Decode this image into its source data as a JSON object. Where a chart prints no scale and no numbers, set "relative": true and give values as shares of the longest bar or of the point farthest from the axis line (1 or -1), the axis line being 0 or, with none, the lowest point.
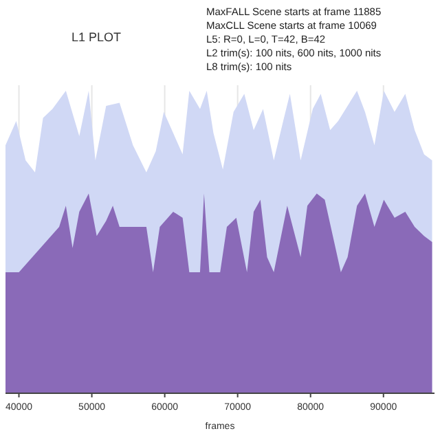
{
  "chart_data": {
    "type": "area",
    "title": "L1 PLOT",
    "xlabel": "frames",
    "relative": true,
    "grid": "x",
    "xlim": [
      38160,
      97000
    ],
    "xticks": [
      40000,
      50000,
      60000,
      70000,
      80000,
      90000
    ],
    "annotations": [
      "MaxFALL Scene starts at frame 11885",
      "MaxCLL Scene starts at frame 10069",
      "L5: R=0, L=0, T=42, B=42",
      "L2 trim(s): 100 nits, 600 nits, 1000 nits",
      "L8 trim(s): 100 nits"
    ],
    "series": [
      {
        "color": "#d0d8f5",
        "x": [
          38160,
          39630,
          40920,
          42210,
          43310,
          44600,
          46440,
          48280,
          49570,
          50490,
          51960,
          53800,
          55640,
          57480,
          58770,
          59870,
          61160,
          62450,
          63370,
          64840,
          65760,
          66680,
          67970,
          69440,
          70910,
          72200,
          73490,
          74960,
          76250,
          77170,
          78640,
          80300,
          81400,
          82690,
          83790,
          85080,
          86370,
          87470,
          88760,
          90050,
          91520,
          92990,
          94280,
          95570,
          96670
        ],
        "values": [
          0.82,
          0.9,
          0.77,
          0.73,
          0.91,
          0.94,
          1,
          0.85,
          1,
          0.77,
          0.95,
          0.96,
          0.82,
          0.73,
          0.8,
          0.93,
          0.86,
          0.79,
          1,
          0.94,
          1,
          0.86,
          0.74,
          0.93,
          0.99,
          0.87,
          0.94,
          0.77,
          0.9,
          0.99,
          0.77,
          0.94,
          0.99,
          0.87,
          0.9,
          0.95,
          1,
          0.93,
          0.82,
          1,
          0.93,
          0.99,
          0.87,
          0.79,
          0.77
        ]
      },
      {
        "color": "#8a6ab8",
        "x": [
          38160,
          40000,
          41840,
          43680,
          45520,
          46440,
          47360,
          48280,
          49570,
          50670,
          51960,
          52880,
          53800,
          55640,
          57480,
          58400,
          59320,
          61160,
          62450,
          63370,
          63920,
          64840,
          65390,
          66120,
          67600,
          68520,
          69810,
          71280,
          72200,
          73120,
          74040,
          74960,
          76800,
          78640,
          79560,
          80850,
          81950,
          83240,
          84160,
          85080,
          86370,
          87470,
          88760,
          90050,
          91520,
          92990,
          94280,
          95570,
          96670
        ],
        "values": [
          0.4,
          0.4,
          0.45,
          0.5,
          0.55,
          0.62,
          0.48,
          0.6,
          0.66,
          0.52,
          0.57,
          0.62,
          0.55,
          0.55,
          0.55,
          0.4,
          0.55,
          0.6,
          0.58,
          0.4,
          0.4,
          0.4,
          0.66,
          0.4,
          0.4,
          0.55,
          0.58,
          0.4,
          0.6,
          0.64,
          0.45,
          0.4,
          0.62,
          0.45,
          0.62,
          0.66,
          0.64,
          0.5,
          0.4,
          0.45,
          0.62,
          0.66,
          0.55,
          0.64,
          0.58,
          0.6,
          0.55,
          0.52,
          0.5
        ]
      }
    ]
  }
}
